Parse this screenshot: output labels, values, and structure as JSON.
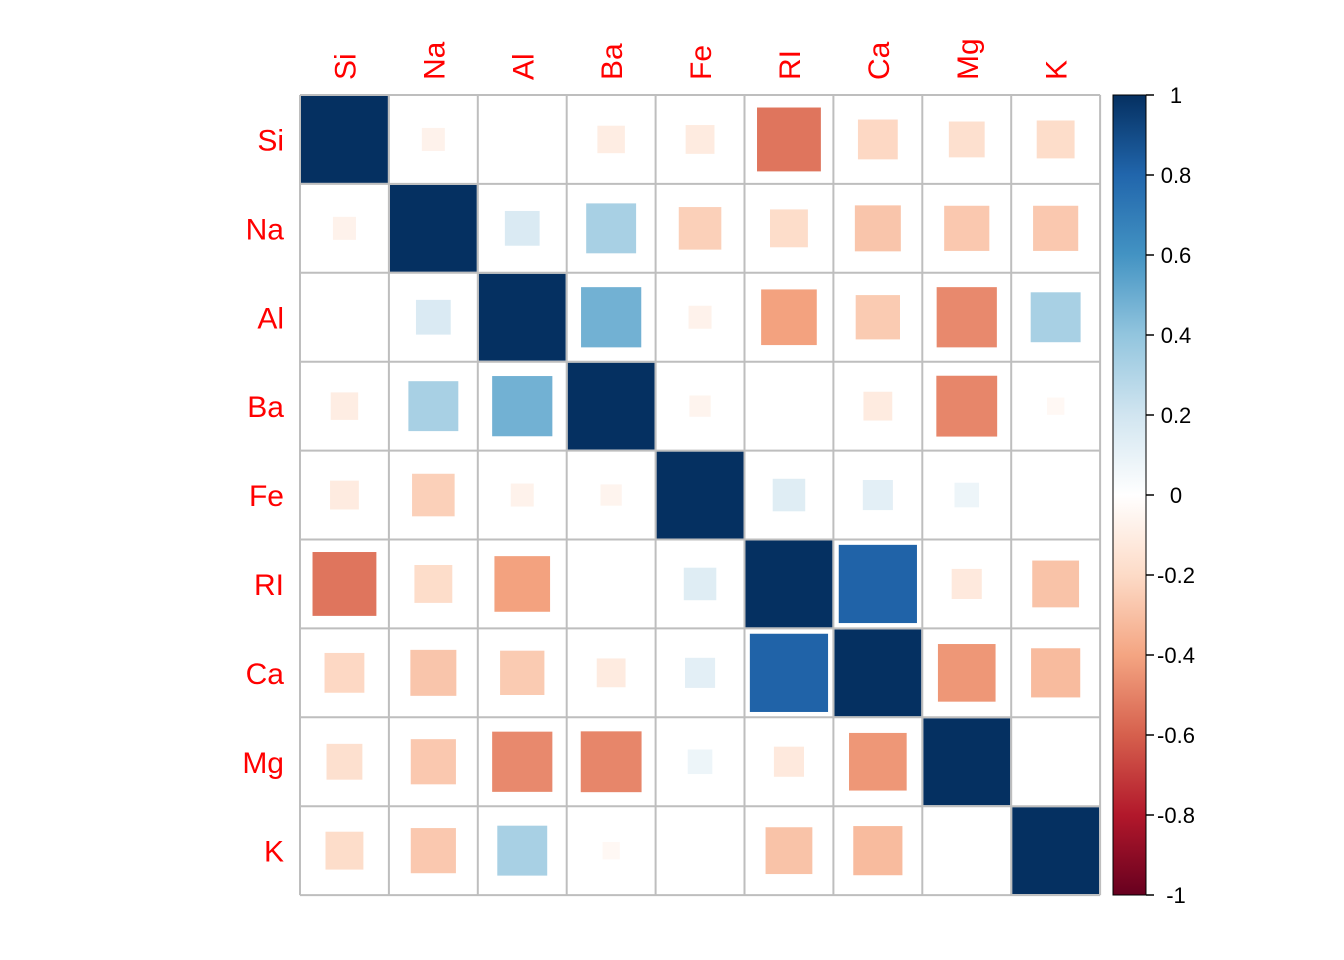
{
  "chart_data": {
    "type": "heatmap",
    "title": "",
    "variables": [
      "Si",
      "Na",
      "Al",
      "Ba",
      "Fe",
      "RI",
      "Ca",
      "Mg",
      "K"
    ],
    "matrix": [
      [
        1.0,
        -0.07,
        0.0,
        -0.1,
        -0.11,
        -0.54,
        -0.21,
        -0.17,
        -0.19
      ],
      [
        -0.07,
        1.0,
        0.16,
        0.33,
        -0.24,
        -0.19,
        -0.28,
        -0.27,
        -0.27
      ],
      [
        0.0,
        0.16,
        1.0,
        0.48,
        -0.07,
        -0.41,
        -0.26,
        -0.48,
        0.33
      ],
      [
        -0.1,
        0.33,
        0.48,
        1.0,
        -0.06,
        0.0,
        -0.11,
        -0.49,
        -0.04
      ],
      [
        -0.11,
        -0.24,
        -0.07,
        -0.06,
        1.0,
        0.14,
        0.12,
        0.08,
        0.0
      ],
      [
        -0.54,
        -0.19,
        -0.41,
        0.0,
        0.14,
        1.0,
        0.81,
        -0.12,
        -0.29
      ],
      [
        -0.21,
        -0.28,
        -0.26,
        -0.11,
        0.12,
        0.81,
        1.0,
        -0.44,
        -0.32
      ],
      [
        -0.17,
        -0.27,
        -0.48,
        -0.49,
        0.08,
        -0.12,
        -0.44,
        1.0,
        0.0
      ],
      [
        -0.19,
        -0.27,
        0.33,
        -0.04,
        0.0,
        -0.29,
        -0.32,
        0.0,
        1.0
      ]
    ],
    "color_scale": {
      "range": [
        -1,
        1
      ],
      "ticks": [
        "1",
        "0.8",
        "0.6",
        "0.4",
        "0.2",
        "0",
        "-0.2",
        "-0.4",
        "-0.6",
        "-0.8",
        "-1"
      ],
      "colors": [
        "#67001F",
        "#B2182B",
        "#D6604D",
        "#F4A582",
        "#FDDBC7",
        "#FFFFFF",
        "#D1E5F0",
        "#92C5DE",
        "#4393C3",
        "#2166AC",
        "#053061"
      ]
    },
    "label_color": "#ff0000",
    "grid_color": "#bebebe",
    "legend_position": "right"
  }
}
